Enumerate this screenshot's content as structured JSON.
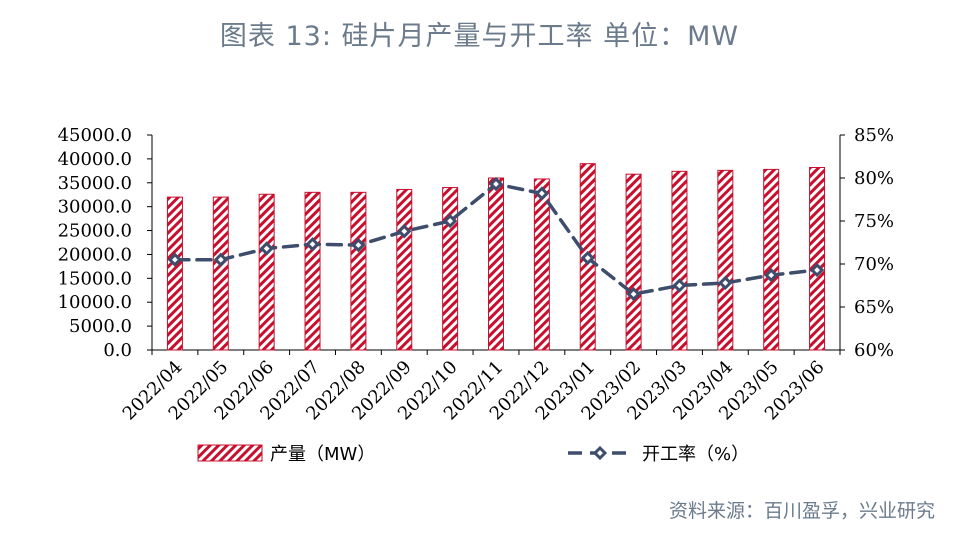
{
  "title": "图表 13: 硅片月产量与开工率  单位：MW",
  "source": "资料来源：百川盈孚，兴业研究",
  "colors": {
    "bar": "#c8102e",
    "line": "#3d4d6b",
    "title": "#6b7b8c"
  },
  "chart_data": {
    "type": "bar",
    "categories": [
      "2022/04",
      "2022/05",
      "2022/06",
      "2022/07",
      "2022/08",
      "2022/09",
      "2022/10",
      "2022/11",
      "2022/12",
      "2023/01",
      "2023/02",
      "2023/03",
      "2023/04",
      "2023/05",
      "2023/06"
    ],
    "series": [
      {
        "name": "产量（MW）",
        "type": "bar",
        "axis": "left",
        "values": [
          32000,
          32000,
          32600,
          33000,
          33000,
          33600,
          34000,
          36000,
          35800,
          39000,
          36800,
          37400,
          37600,
          37800,
          38200
        ]
      },
      {
        "name": "开工率（%）",
        "type": "line",
        "axis": "right",
        "values": [
          70.5,
          70.5,
          71.8,
          72.3,
          72.2,
          73.8,
          75.0,
          79.3,
          78.2,
          70.7,
          66.5,
          67.5,
          67.8,
          68.7,
          69.3
        ]
      }
    ],
    "y_left": {
      "min": 0,
      "max": 45000,
      "step": 5000,
      "tick_labels": [
        "0.0",
        "5000.0",
        "10000.0",
        "15000.0",
        "20000.0",
        "25000.0",
        "30000.0",
        "35000.0",
        "40000.0",
        "45000.0"
      ]
    },
    "y_right": {
      "min": 60,
      "max": 85,
      "step": 5,
      "tick_labels": [
        "60%",
        "65%",
        "70%",
        "75%",
        "80%",
        "85%"
      ]
    },
    "legend_position": "bottom",
    "grid": false
  }
}
